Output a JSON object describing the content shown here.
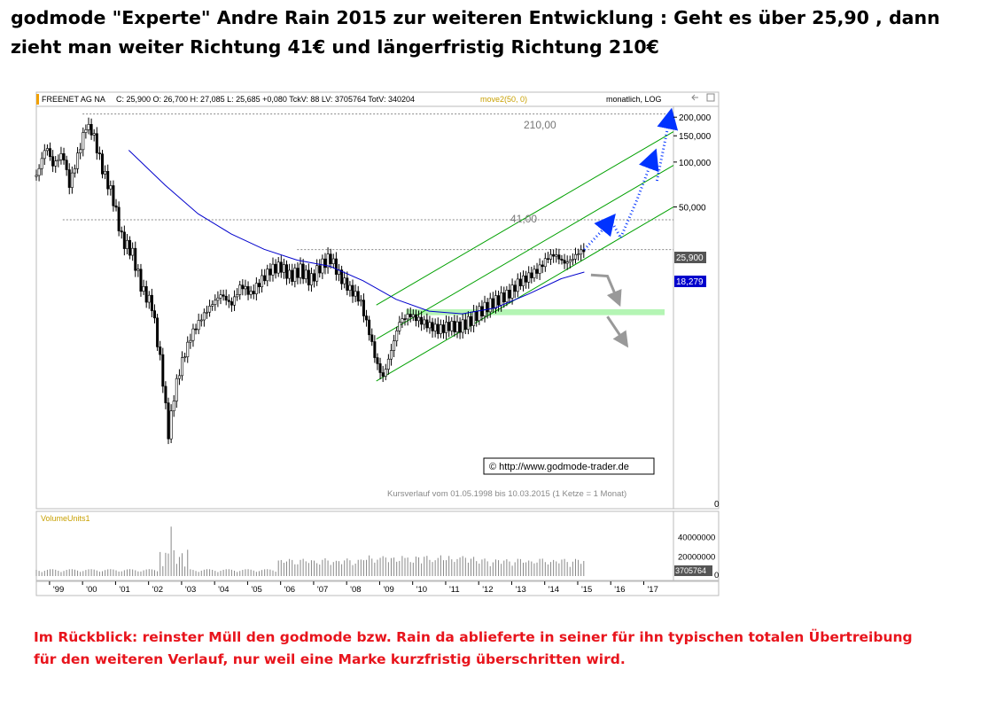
{
  "headline": {
    "line1": "godmode \"Experte\" Andre Rain 2015 zur weiteren Entwicklung : Geht es über 25,90 , dann",
    "line2": "zieht man weiter Richtung 41€ und längerfristig Richtung 210€"
  },
  "footer": {
    "line1": "Im Rückblick: reinster Müll den godmode bzw. Rain da ablieferte in seiner für ihn typischen totalen Übertreibung",
    "line2": "für den weiteren Verlauf, nur weil eine Marke kurzfristig überschritten wird."
  },
  "chart_header": {
    "symbol": "FREENET AG NA",
    "stats": "C: 25,900  O: 26,700  H: 27,085  L: 25,685  +0,080  TckV: 88  LV: 3705764  TotV: 340204",
    "indicator": "move2(50, 0)",
    "period": "monatlich, LOG"
  },
  "annotations": {
    "target_far": "210,00",
    "target_near": "41,00",
    "copyright": "© http://www.godmode-trader.de",
    "range_note": "Kursverlauf vom 01.05.1998 bis 10.03.2015 (1 Ketze = 1 Monat)",
    "last_price": "25,900",
    "ma_value": "18,279",
    "volume_label": "VolumeUnits1",
    "volume_last": "3705764"
  },
  "colors": {
    "candle": "#000000",
    "moving_average": "#0000cc",
    "channel": "#00a000",
    "support_zone": "#b4f5b4",
    "forecast_arrow": "#0033ff",
    "bear_arrow": "#999999",
    "volume_bar": "#888888",
    "headline": "#000000",
    "footer": "#e8141c",
    "ma_badge": "#0000cc",
    "price_badge": "#555555"
  },
  "chart_data": {
    "type": "candlestick",
    "scale": "log",
    "title": "FREENET AG NA",
    "period": "monatlich",
    "x_tick_labels": [
      "'99",
      "'00",
      "'01",
      "'02",
      "'03",
      "'04",
      "'05",
      "'06",
      "'07",
      "'08",
      "'09",
      "'10",
      "'11",
      "'12",
      "'13",
      "'14",
      "'15",
      "'16",
      "'17"
    ],
    "y_tick_labels": [
      "200,000",
      "150,000",
      "100,000",
      "50,000",
      "0"
    ],
    "y_ticks": [
      200,
      150,
      100,
      50
    ],
    "ylim": [
      0.5,
      230
    ],
    "xlim": [
      1998.6,
      2017.9
    ],
    "levels": [
      {
        "label": "210,00",
        "value": 210
      },
      {
        "label": "41,00",
        "value": 41
      },
      {
        "label": "25,900",
        "value": 25.9
      }
    ],
    "close_series": [
      {
        "t": 1998.6,
        "v": 80
      },
      {
        "t": 1998.9,
        "v": 130
      },
      {
        "t": 1999.1,
        "v": 95
      },
      {
        "t": 1999.4,
        "v": 115
      },
      {
        "t": 1999.6,
        "v": 70
      },
      {
        "t": 1999.9,
        "v": 120
      },
      {
        "t": 2000.1,
        "v": 175
      },
      {
        "t": 2000.3,
        "v": 160
      },
      {
        "t": 2000.6,
        "v": 90
      },
      {
        "t": 2000.9,
        "v": 60
      },
      {
        "t": 2001.2,
        "v": 30
      },
      {
        "t": 2001.5,
        "v": 25
      },
      {
        "t": 2001.8,
        "v": 14
      },
      {
        "t": 2002.1,
        "v": 11
      },
      {
        "t": 2002.4,
        "v": 4
      },
      {
        "t": 2002.6,
        "v": 1.5
      },
      {
        "t": 2002.8,
        "v": 3
      },
      {
        "t": 2003.0,
        "v": 4.5
      },
      {
        "t": 2003.3,
        "v": 7
      },
      {
        "t": 2003.6,
        "v": 9
      },
      {
        "t": 2003.9,
        "v": 11
      },
      {
        "t": 2004.2,
        "v": 13
      },
      {
        "t": 2004.5,
        "v": 11
      },
      {
        "t": 2004.8,
        "v": 15
      },
      {
        "t": 2005.1,
        "v": 13
      },
      {
        "t": 2005.4,
        "v": 16
      },
      {
        "t": 2005.7,
        "v": 19
      },
      {
        "t": 2006.0,
        "v": 20
      },
      {
        "t": 2006.3,
        "v": 17
      },
      {
        "t": 2006.6,
        "v": 19
      },
      {
        "t": 2006.9,
        "v": 16
      },
      {
        "t": 2007.2,
        "v": 20
      },
      {
        "t": 2007.5,
        "v": 23
      },
      {
        "t": 2007.8,
        "v": 17
      },
      {
        "t": 2008.1,
        "v": 14
      },
      {
        "t": 2008.4,
        "v": 12
      },
      {
        "t": 2008.7,
        "v": 7
      },
      {
        "t": 2008.9,
        "v": 4.5
      },
      {
        "t": 2009.1,
        "v": 3.6
      },
      {
        "t": 2009.3,
        "v": 5
      },
      {
        "t": 2009.6,
        "v": 8.5
      },
      {
        "t": 2009.9,
        "v": 9.5
      },
      {
        "t": 2010.2,
        "v": 8.7
      },
      {
        "t": 2010.5,
        "v": 8
      },
      {
        "t": 2010.8,
        "v": 7.5
      },
      {
        "t": 2011.1,
        "v": 8
      },
      {
        "t": 2011.4,
        "v": 7.8
      },
      {
        "t": 2011.7,
        "v": 8.5
      },
      {
        "t": 2012.0,
        "v": 9.8
      },
      {
        "t": 2012.3,
        "v": 11
      },
      {
        "t": 2012.6,
        "v": 12
      },
      {
        "t": 2012.9,
        "v": 13
      },
      {
        "t": 2013.2,
        "v": 15.5
      },
      {
        "t": 2013.5,
        "v": 17
      },
      {
        "t": 2013.8,
        "v": 19
      },
      {
        "t": 2014.1,
        "v": 23
      },
      {
        "t": 2014.3,
        "v": 24
      },
      {
        "t": 2014.6,
        "v": 21
      },
      {
        "t": 2014.8,
        "v": 22
      },
      {
        "t": 2015.0,
        "v": 24.5
      },
      {
        "t": 2015.2,
        "v": 25.9
      }
    ],
    "moving_average": [
      {
        "t": 2001.4,
        "v": 120
      },
      {
        "t": 2002.5,
        "v": 70
      },
      {
        "t": 2003.5,
        "v": 45
      },
      {
        "t": 2004.5,
        "v": 33
      },
      {
        "t": 2005.5,
        "v": 26
      },
      {
        "t": 2006.5,
        "v": 22
      },
      {
        "t": 2007.5,
        "v": 20
      },
      {
        "t": 2008.5,
        "v": 16
      },
      {
        "t": 2009.5,
        "v": 12
      },
      {
        "t": 2010.5,
        "v": 10
      },
      {
        "t": 2011.5,
        "v": 9.6
      },
      {
        "t": 2012.5,
        "v": 10.5
      },
      {
        "t": 2013.5,
        "v": 13
      },
      {
        "t": 2014.5,
        "v": 16.5
      },
      {
        "t": 2015.2,
        "v": 18.279
      }
    ],
    "volume": {
      "label": "VolumeUnits1",
      "y_tick_labels": [
        "40000000",
        "20000000",
        "0"
      ],
      "last": 3705764
    }
  }
}
